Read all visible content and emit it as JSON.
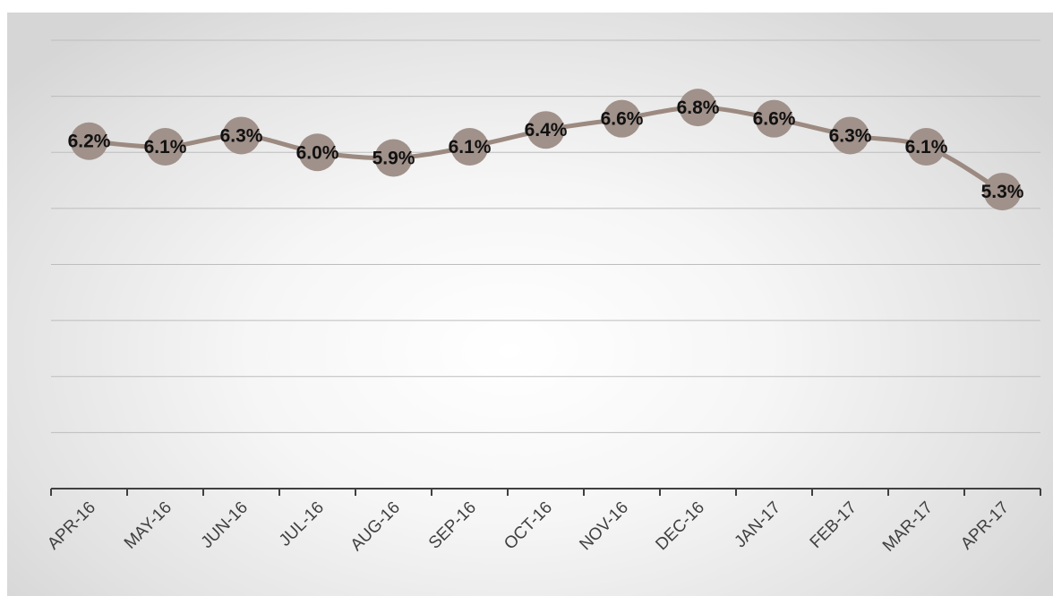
{
  "chart_data": {
    "type": "line",
    "categories": [
      "APR-16",
      "MAY-16",
      "JUN-16",
      "JUL-16",
      "AUG-16",
      "SEP-16",
      "OCT-16",
      "NOV-16",
      "DEC-16",
      "JAN-17",
      "FEB-17",
      "MAR-17",
      "APR-17"
    ],
    "series": [
      {
        "values": [
          6.2,
          6.1,
          6.3,
          6.0,
          5.9,
          6.1,
          6.4,
          6.6,
          6.8,
          6.6,
          6.3,
          6.1,
          5.3
        ],
        "labels": [
          "6.2%",
          "6.1%",
          "6.3%",
          "6.0%",
          "5.9%",
          "6.1%",
          "6.4%",
          "6.6%",
          "6.8%",
          "6.6%",
          "6.3%",
          "6.1%",
          "5.3%"
        ],
        "color": "#a0918a"
      }
    ],
    "title": "",
    "xlabel": "",
    "ylabel": "",
    "ylim": [
      0,
      8
    ],
    "gridlines": true,
    "y_axis_visible": false,
    "legend": "none",
    "smooth": true
  }
}
